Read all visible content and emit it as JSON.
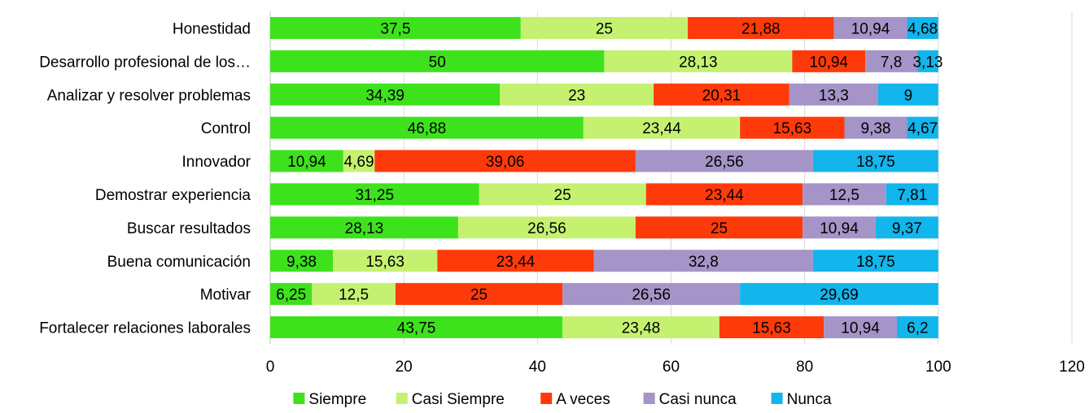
{
  "chart_data": {
    "type": "bar",
    "orientation": "horizontal",
    "stacked": true,
    "title": "",
    "xlabel": "",
    "ylabel": "",
    "xlim": [
      0,
      120
    ],
    "xticks": [
      0,
      20,
      40,
      60,
      80,
      100,
      120
    ],
    "grid": true,
    "legend_position": "bottom",
    "categories": [
      "Honestidad",
      "Desarrollo profesional de los…",
      "Analizar y resolver problemas",
      "Control",
      "Innovador",
      "Demostrar experiencia",
      "Buscar resultados",
      "Buena comunicación",
      "Motivar",
      "Fortalecer relaciones laborales"
    ],
    "series": [
      {
        "name": "Siempre",
        "color": "#3de21d",
        "values": [
          37.5,
          50,
          34.39,
          46.88,
          10.94,
          31.25,
          28.13,
          9.38,
          6.25,
          43.75
        ],
        "labels": [
          "37,5",
          "50",
          "34,39",
          "46,88",
          "10,94",
          "31,25",
          "28,13",
          "9,38",
          "6,25",
          "43,75"
        ]
      },
      {
        "name": "Casi Siempre",
        "color": "#c5f171",
        "values": [
          25,
          28.13,
          23,
          23.44,
          4.69,
          25,
          26.56,
          15.63,
          12.5,
          23.48
        ],
        "labels": [
          "25",
          "28,13",
          "23",
          "23,44",
          "4,69",
          "25",
          "26,56",
          "15,63",
          "12,5",
          "23,48"
        ]
      },
      {
        "name": "A veces",
        "color": "#ff3a0a",
        "values": [
          21.88,
          10.94,
          20.31,
          15.63,
          39.06,
          23.44,
          25,
          23.44,
          25,
          15.63
        ],
        "labels": [
          "21,88",
          "10,94",
          "20,31",
          "15,63",
          "39,06",
          "23,44",
          "25",
          "23,44",
          "25",
          "15,63"
        ]
      },
      {
        "name": "Casi nunca",
        "color": "#a594c7",
        "values": [
          10.94,
          7.8,
          13.3,
          9.38,
          26.56,
          12.5,
          10.94,
          32.8,
          26.56,
          10.94
        ],
        "labels": [
          "10,94",
          "7,8",
          "13,3",
          "9,38",
          "26,56",
          "12,5",
          "10,94",
          "32,8",
          "26,56",
          "10,94"
        ]
      },
      {
        "name": "Nunca",
        "color": "#12b5ec",
        "values": [
          4.68,
          3.13,
          9,
          4.67,
          18.75,
          7.81,
          9.37,
          18.75,
          29.69,
          6.2
        ],
        "labels": [
          "4,68",
          "3,13",
          "9",
          "4,67",
          "18,75",
          "7,81",
          "9,37",
          "18,75",
          "29,69",
          "6,2"
        ]
      }
    ]
  }
}
